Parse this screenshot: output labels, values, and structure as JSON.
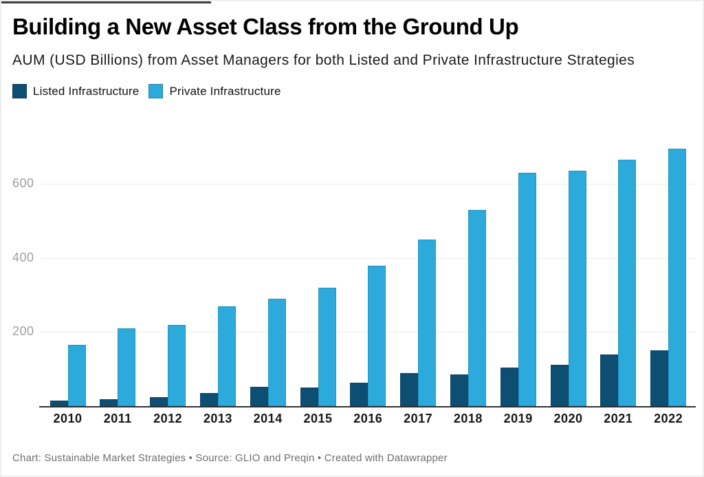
{
  "header": {
    "title": "Building a New Asset Class from the Ground Up",
    "subtitle": "AUM (USD Billions) from Asset Managers for both Listed and Private Infrastructure Strategies"
  },
  "chart_data": {
    "type": "bar",
    "title": "Building a New Asset Class from the Ground Up",
    "subtitle": "AUM (USD Billions) from Asset Managers for both Listed and Private Infrastructure Strategies",
    "categories": [
      "2010",
      "2011",
      "2012",
      "2013",
      "2014",
      "2015",
      "2016",
      "2017",
      "2018",
      "2019",
      "2020",
      "2021",
      "2022"
    ],
    "series": [
      {
        "name": "Listed Infrastructure",
        "color": "#0e4e72",
        "values": [
          15,
          18,
          25,
          36,
          52,
          50,
          63,
          89,
          85,
          105,
          112,
          140,
          150
        ]
      },
      {
        "name": "Private Infrastructure",
        "color": "#2baadb",
        "values": [
          165,
          210,
          220,
          270,
          290,
          320,
          380,
          450,
          530,
          630,
          635,
          665,
          695
        ]
      }
    ],
    "xlabel": "",
    "ylabel": "",
    "yticks": [
      200,
      400,
      600
    ],
    "ylim": [
      0,
      760
    ],
    "grid": true,
    "legend_position": "top-left",
    "colors": {
      "listed": "#0e4e72",
      "private": "#2baadb",
      "gridline": "#ededed",
      "axis_line": "#323232",
      "tick_text": "#9e9e9e"
    }
  },
  "footer": {
    "text": "Chart: Sustainable Market Strategies • Source: GLIO and Preqin • Created with Datawrapper"
  }
}
